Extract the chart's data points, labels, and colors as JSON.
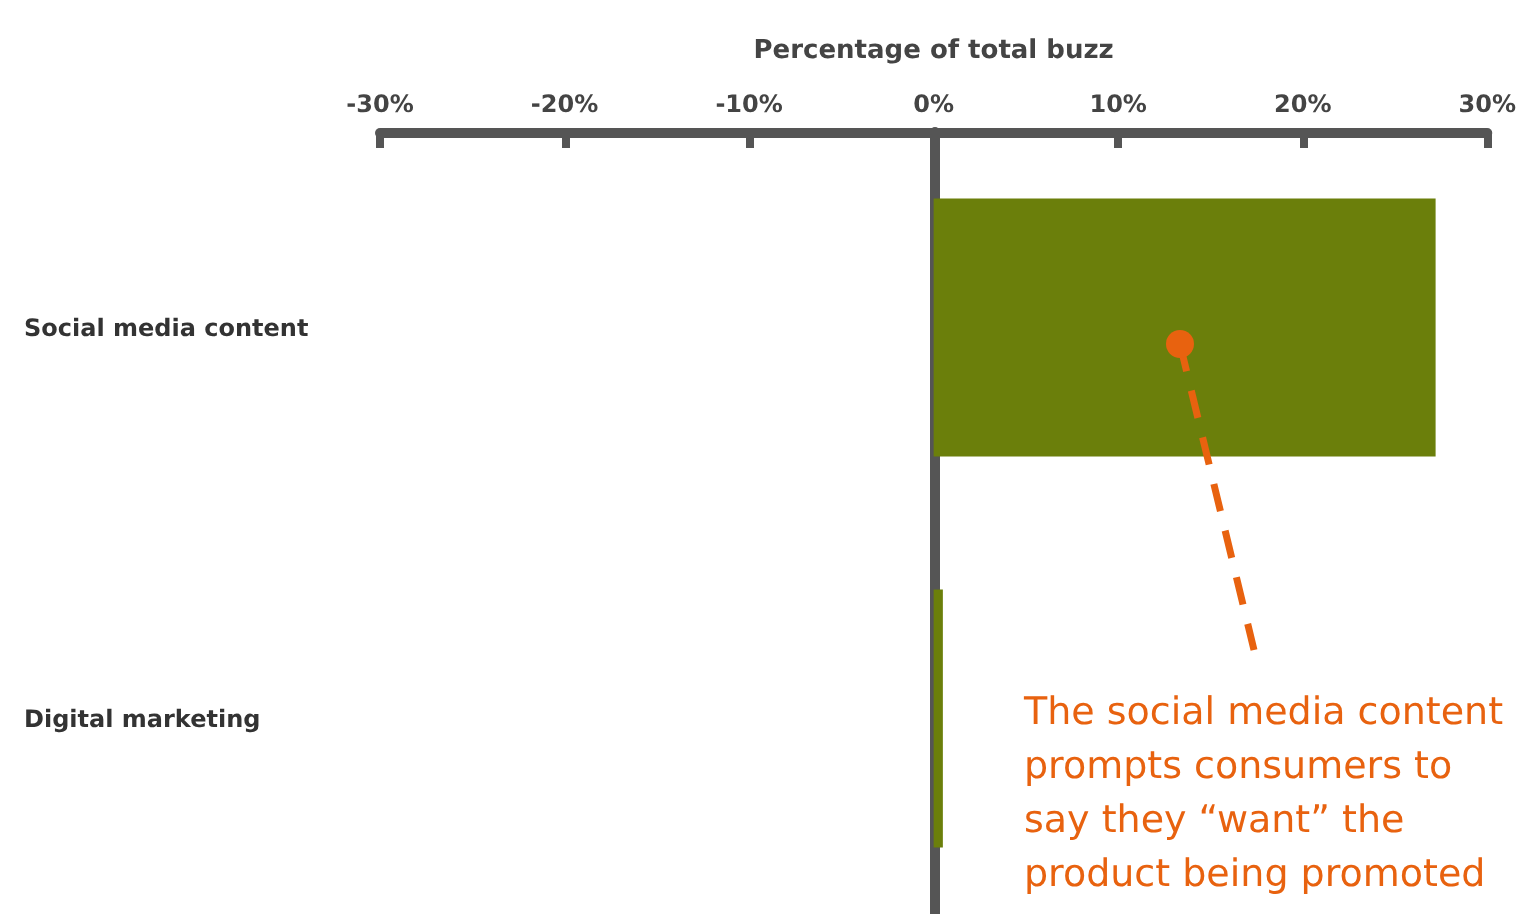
{
  "chart_data": {
    "type": "bar",
    "orientation": "horizontal",
    "xlabel": "Percentage of total buzz",
    "categories": [
      "Social media content",
      "Digital marketing"
    ],
    "values": [
      27.2,
      0.5
    ],
    "color": "#6b7f0b",
    "xlim": [
      -30,
      30
    ],
    "xticks": [
      {
        "value": -30,
        "label": "-30%"
      },
      {
        "value": -20,
        "label": "-20%"
      },
      {
        "value": -10,
        "label": "-10%"
      },
      {
        "value": 0,
        "label": "0%"
      },
      {
        "value": 10,
        "label": "10%"
      },
      {
        "value": 20,
        "label": "20%"
      },
      {
        "value": 30,
        "label": "30%"
      }
    ],
    "annotations": [
      "The social media content prompts consumers to say they “want” the product being promoted"
    ]
  }
}
